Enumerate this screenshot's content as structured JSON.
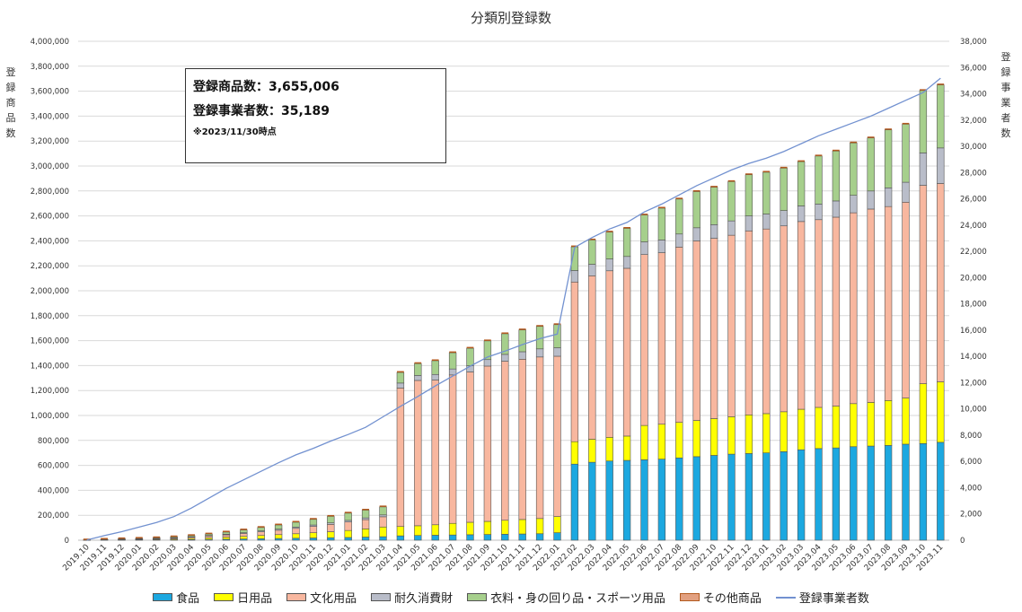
{
  "chart_data": {
    "type": "bar",
    "stacked": true,
    "title": "分類別登録数",
    "ylabel_left": "登録商品数",
    "ylabel_right": "登録事業者数",
    "ylim_left": [
      0,
      4000000
    ],
    "ylim_right": [
      0,
      38000
    ],
    "yticks_left": [
      "0",
      "200,000",
      "400,000",
      "600,000",
      "800,000",
      "1,000,000",
      "1,200,000",
      "1,400,000",
      "1,600,000",
      "1,800,000",
      "2,000,000",
      "2,200,000",
      "2,400,000",
      "2,600,000",
      "2,800,000",
      "3,000,000",
      "3,200,000",
      "3,400,000",
      "3,600,000",
      "3,800,000",
      "4,000,000"
    ],
    "yticks_right": [
      "0",
      "2,000",
      "4,000",
      "6,000",
      "8,000",
      "10,000",
      "12,000",
      "14,000",
      "16,000",
      "18,000",
      "20,000",
      "22,000",
      "24,000",
      "26,000",
      "28,000",
      "30,000",
      "32,000",
      "34,000",
      "36,000",
      "38,000"
    ],
    "grid": true,
    "legend_position": "bottom",
    "categories": [
      "2019.10",
      "2019.11",
      "2019.12",
      "2020.01",
      "2020.02",
      "2020.03",
      "2020.04",
      "2020.05",
      "2020.06",
      "2020.07",
      "2020.08",
      "2020.09",
      "2020.10",
      "2020.11",
      "2020.12",
      "2021.01",
      "2021.02",
      "2021.03",
      "2021.04",
      "2021.05",
      "2021.06",
      "2021.07",
      "2021.08",
      "2021.09",
      "2021.10",
      "2021.11",
      "2021.12",
      "2022.01",
      "2022.02",
      "2022.03",
      "2022.04",
      "2022.05",
      "2022.06",
      "2022.07",
      "2022.08",
      "2022.09",
      "2022.10",
      "2022.11",
      "2022.12",
      "2023.01",
      "2023.02",
      "2023.03",
      "2023.04",
      "2023.05",
      "2023.06",
      "2023.07",
      "2023.08",
      "2023.09",
      "2023.10",
      "2023.11"
    ],
    "series": [
      {
        "name": "食品",
        "color": "#1CA8E0",
        "values": [
          300,
          1000,
          1500,
          2000,
          2500,
          3500,
          5000,
          6500,
          8000,
          10000,
          12000,
          14000,
          16000,
          18000,
          20000,
          22000,
          25000,
          28000,
          35000,
          38000,
          40000,
          42000,
          44000,
          46000,
          48000,
          50000,
          52000,
          60000,
          610000,
          625000,
          635000,
          640000,
          645000,
          650000,
          660000,
          670000,
          680000,
          690000,
          695000,
          700000,
          710000,
          725000,
          735000,
          740000,
          750000,
          755000,
          760000,
          770000,
          775000,
          785000
        ]
      },
      {
        "name": "日用品",
        "color": "#FFFF00",
        "values": [
          500,
          2000,
          3000,
          4000,
          5000,
          7000,
          10000,
          13000,
          17000,
          21000,
          26000,
          31000,
          36000,
          42000,
          48000,
          56000,
          66000,
          78000,
          75000,
          78000,
          84000,
          93000,
          100000,
          105000,
          112000,
          116000,
          122000,
          130000,
          180000,
          185000,
          190000,
          195000,
          275000,
          280000,
          285000,
          290000,
          295000,
          300000,
          310000,
          315000,
          320000,
          325000,
          330000,
          335000,
          345000,
          350000,
          360000,
          370000,
          480000,
          485000
        ]
      },
      {
        "name": "文化用品",
        "color": "#F8B79F",
        "values": [
          500,
          2000,
          3500,
          4000,
          5000,
          7000,
          10000,
          14000,
          18000,
          23000,
          29000,
          35000,
          43000,
          51000,
          59000,
          68000,
          74000,
          82000,
          1110000,
          1165000,
          1160000,
          1190000,
          1205000,
          1245000,
          1275000,
          1285000,
          1295000,
          1285000,
          1280000,
          1310000,
          1335000,
          1345000,
          1370000,
          1375000,
          1405000,
          1440000,
          1445000,
          1455000,
          1475000,
          1480000,
          1490000,
          1505000,
          1505000,
          1515000,
          1530000,
          1550000,
          1555000,
          1570000,
          1590000,
          1590000
        ]
      },
      {
        "name": "耐久消費財",
        "color": "#B9BDC9",
        "values": [
          200,
          800,
          1000,
          1500,
          2000,
          2500,
          3000,
          4000,
          5000,
          6000,
          8000,
          9000,
          10000,
          11000,
          12000,
          13000,
          14000,
          15000,
          40000,
          40000,
          45000,
          48000,
          50000,
          52000,
          55000,
          60000,
          65000,
          68000,
          92000,
          92000,
          95000,
          95000,
          102000,
          102000,
          105000,
          105000,
          110000,
          115000,
          120000,
          120000,
          123000,
          125000,
          125000,
          130000,
          140000,
          145000,
          150000,
          160000,
          260000,
          285000
        ]
      },
      {
        "name": "衣料・身の回り品・スポーツ用品",
        "color": "#A6CF8C",
        "values": [
          500,
          1500,
          2500,
          3500,
          5000,
          7000,
          9000,
          12000,
          17000,
          22000,
          27000,
          33000,
          39000,
          45000,
          52000,
          58000,
          62000,
          64000,
          85000,
          95000,
          110000,
          130000,
          140000,
          150000,
          165000,
          175000,
          180000,
          185000,
          190000,
          195000,
          215000,
          225000,
          215000,
          255000,
          280000,
          290000,
          300000,
          315000,
          330000,
          335000,
          340000,
          355000,
          385000,
          400000,
          420000,
          425000,
          465000,
          465000,
          500000,
          505000
        ]
      },
      {
        "name": "その他商品",
        "color": "#E2A080",
        "edge": "#B35A1F",
        "values": [
          0,
          0,
          0,
          0,
          0,
          0,
          0,
          0,
          0,
          0,
          0,
          0,
          0,
          0,
          0,
          0,
          0,
          0,
          0,
          0,
          0,
          0,
          0,
          0,
          0,
          0,
          0,
          0,
          0,
          0,
          0,
          0,
          0,
          0,
          0,
          0,
          0,
          0,
          0,
          0,
          0,
          0,
          0,
          0,
          0,
          0,
          0,
          0,
          0,
          0
        ]
      },
      {
        "name": "登録事業者数",
        "color": "#7291D0",
        "axis": "right",
        "type": "line",
        "values": [
          20,
          350,
          650,
          1000,
          1350,
          1800,
          2450,
          3200,
          3950,
          4600,
          5250,
          5900,
          6500,
          7000,
          7550,
          8050,
          8600,
          9400,
          10200,
          10950,
          11750,
          12500,
          13250,
          13950,
          14400,
          14900,
          15350,
          15700,
          22300,
          23050,
          23700,
          24200,
          25000,
          25600,
          26300,
          27000,
          27600,
          28200,
          28700,
          29100,
          29600,
          30200,
          30800,
          31300,
          31800,
          32300,
          32900,
          33500,
          34100,
          35189
        ]
      }
    ]
  },
  "infobox": {
    "line1": "登録商品数：3,655,006",
    "line2": "登録事業者数：35,189",
    "line3": "※2023/11/30時点"
  }
}
